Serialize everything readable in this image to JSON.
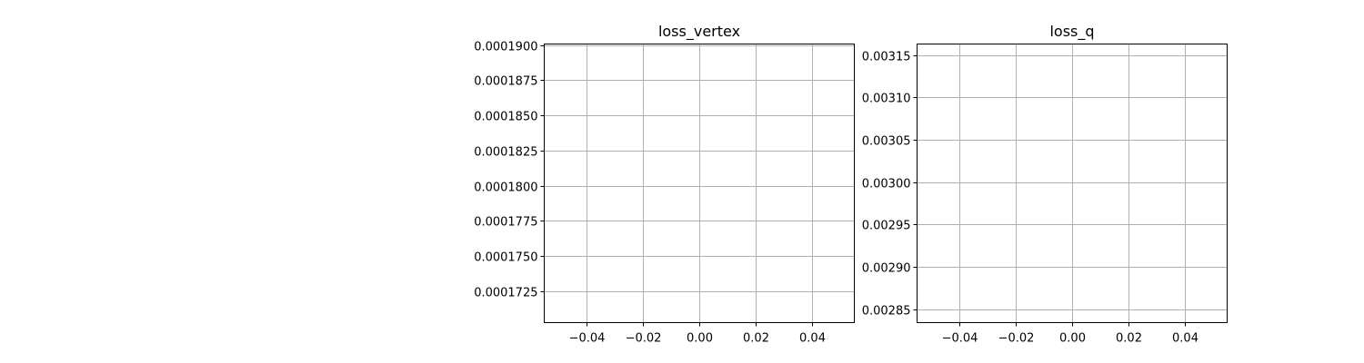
{
  "chart_data": [
    {
      "type": "line",
      "title": "loss_vertex",
      "xlabel": "",
      "ylabel": "",
      "xlim": [
        -0.055,
        0.055
      ],
      "ylim": [
        0.00017027,
        0.00019007
      ],
      "xticks": [
        -0.04,
        -0.02,
        0.0,
        0.02,
        0.04
      ],
      "xtick_labels": [
        "−0.04",
        "−0.02",
        "0.00",
        "0.02",
        "0.04"
      ],
      "yticks": [
        0.0001725,
        0.000175,
        0.0001775,
        0.00018,
        0.0001825,
        0.000185,
        0.0001875,
        0.00019
      ],
      "ytick_labels": [
        "0.0001725",
        "0.0001750",
        "0.0001775",
        "0.0001800",
        "0.0001825",
        "0.0001850",
        "0.0001875",
        "0.0001900"
      ],
      "grid": true,
      "series": []
    },
    {
      "type": "line",
      "title": "loss_q",
      "xlabel": "",
      "ylabel": "",
      "xlim": [
        -0.055,
        0.055
      ],
      "ylim": [
        0.002834,
        0.003163
      ],
      "xticks": [
        -0.04,
        -0.02,
        0.0,
        0.02,
        0.04
      ],
      "xtick_labels": [
        "−0.04",
        "−0.02",
        "0.00",
        "0.02",
        "0.04"
      ],
      "yticks": [
        0.00285,
        0.0029,
        0.00295,
        0.003,
        0.00305,
        0.0031,
        0.00315
      ],
      "ytick_labels": [
        "0.00285",
        "0.00290",
        "0.00295",
        "0.00300",
        "0.00305",
        "0.00310",
        "0.00315"
      ],
      "grid": true,
      "series": []
    }
  ]
}
